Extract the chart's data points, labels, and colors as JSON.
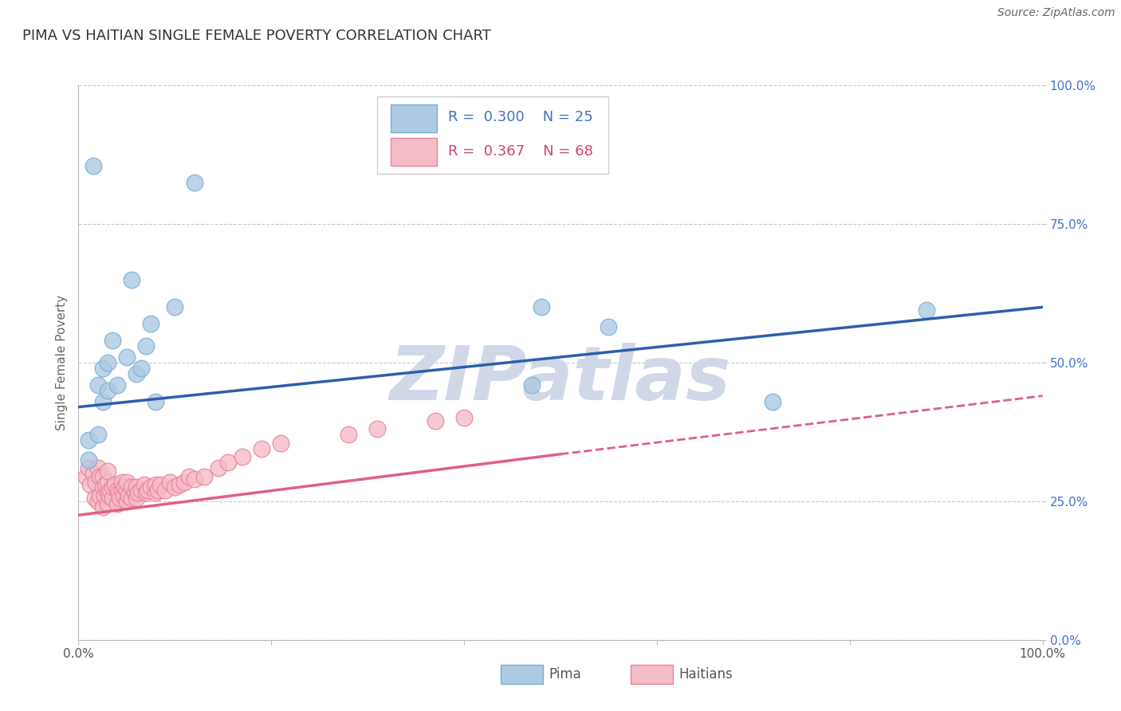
{
  "title": "PIMA VS HAITIAN SINGLE FEMALE POVERTY CORRELATION CHART",
  "source_text": "Source: ZipAtlas.com",
  "ylabel": "Single Female Poverty",
  "xlim": [
    0.0,
    1.0
  ],
  "ylim": [
    0.0,
    1.0
  ],
  "ytick_positions": [
    0.0,
    0.25,
    0.5,
    0.75,
    1.0
  ],
  "ytick_labels": [
    "0.0%",
    "25.0%",
    "50.0%",
    "75.0%",
    "100.0%"
  ],
  "grid_color": "#c8c8c8",
  "background_color": "#ffffff",
  "watermark_text": "ZIPatlas",
  "watermark_color": "#d0d8e8",
  "pima_face_color": "#aec9e2",
  "pima_edge_color": "#7aafd4",
  "haitian_face_color": "#f5bcc8",
  "haitian_edge_color": "#e8829a",
  "blue_line_color": "#2c5faa",
  "pink_line_color": "#e06080",
  "legend_blue_text_color": "#4472c4",
  "legend_pink_text_color": "#d44466",
  "pima_R": 0.3,
  "pima_N": 25,
  "haitian_R": 0.367,
  "haitian_N": 68,
  "pima_x": [
    0.01,
    0.01,
    0.015,
    0.02,
    0.02,
    0.025,
    0.025,
    0.03,
    0.03,
    0.035,
    0.04,
    0.05,
    0.055,
    0.06,
    0.065,
    0.07,
    0.075,
    0.08,
    0.1,
    0.12,
    0.47,
    0.48,
    0.55,
    0.72,
    0.88
  ],
  "pima_y": [
    0.325,
    0.36,
    0.855,
    0.37,
    0.46,
    0.49,
    0.43,
    0.45,
    0.5,
    0.54,
    0.46,
    0.51,
    0.65,
    0.48,
    0.49,
    0.53,
    0.57,
    0.43,
    0.6,
    0.825,
    0.46,
    0.6,
    0.565,
    0.43,
    0.595
  ],
  "haitian_x": [
    0.008,
    0.01,
    0.012,
    0.015,
    0.017,
    0.018,
    0.02,
    0.02,
    0.022,
    0.022,
    0.025,
    0.025,
    0.025,
    0.027,
    0.028,
    0.03,
    0.03,
    0.03,
    0.03,
    0.032,
    0.033,
    0.035,
    0.035,
    0.038,
    0.04,
    0.04,
    0.042,
    0.043,
    0.045,
    0.045,
    0.047,
    0.048,
    0.05,
    0.05,
    0.05,
    0.052,
    0.055,
    0.055,
    0.058,
    0.06,
    0.06,
    0.062,
    0.065,
    0.068,
    0.07,
    0.072,
    0.075,
    0.08,
    0.08,
    0.082,
    0.085,
    0.09,
    0.095,
    0.1,
    0.105,
    0.11,
    0.115,
    0.12,
    0.13,
    0.145,
    0.155,
    0.17,
    0.19,
    0.21,
    0.28,
    0.31,
    0.37,
    0.4
  ],
  "haitian_y": [
    0.295,
    0.31,
    0.28,
    0.3,
    0.255,
    0.285,
    0.25,
    0.31,
    0.26,
    0.295,
    0.24,
    0.275,
    0.295,
    0.26,
    0.28,
    0.245,
    0.265,
    0.285,
    0.305,
    0.26,
    0.27,
    0.255,
    0.275,
    0.28,
    0.245,
    0.27,
    0.265,
    0.255,
    0.27,
    0.285,
    0.26,
    0.275,
    0.25,
    0.27,
    0.285,
    0.26,
    0.255,
    0.275,
    0.265,
    0.255,
    0.275,
    0.265,
    0.27,
    0.28,
    0.265,
    0.27,
    0.275,
    0.265,
    0.28,
    0.27,
    0.28,
    0.27,
    0.285,
    0.275,
    0.28,
    0.285,
    0.295,
    0.29,
    0.295,
    0.31,
    0.32,
    0.33,
    0.345,
    0.355,
    0.37,
    0.38,
    0.395,
    0.4
  ],
  "title_fontsize": 13,
  "ylabel_fontsize": 11,
  "tick_fontsize": 11,
  "source_fontsize": 10
}
